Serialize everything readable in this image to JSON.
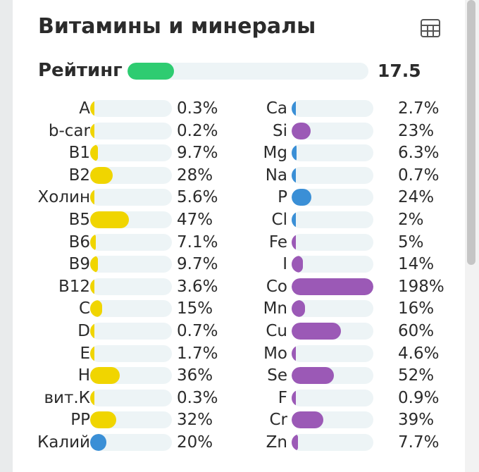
{
  "header": {
    "title": "Витамины и минералы",
    "icon": "table-icon"
  },
  "rating": {
    "label": "Рейтинг",
    "value": "17.5",
    "fraction": 0.175,
    "color": "#2ecc71"
  },
  "colors": {
    "vitamin": "#f0d500",
    "potassium": "#3a8fd6",
    "mineral_blue": "#3a8fd6",
    "mineral_purple": "#9b59b6",
    "track": "#edf4f6"
  },
  "vitamins": [
    {
      "name": "A",
      "percent": "0.3%",
      "value": 0.3,
      "color": "#f0d500"
    },
    {
      "name": "b-car",
      "percent": "0.2%",
      "value": 0.2,
      "color": "#f0d500"
    },
    {
      "name": "B1",
      "percent": "9.7%",
      "value": 9.7,
      "color": "#f0d500"
    },
    {
      "name": "B2",
      "percent": "28%",
      "value": 28,
      "color": "#f0d500"
    },
    {
      "name": "Холин",
      "percent": "5.6%",
      "value": 5.6,
      "color": "#f0d500"
    },
    {
      "name": "B5",
      "percent": "47%",
      "value": 47,
      "color": "#f0d500"
    },
    {
      "name": "B6",
      "percent": "7.1%",
      "value": 7.1,
      "color": "#f0d500"
    },
    {
      "name": "B9",
      "percent": "9.7%",
      "value": 9.7,
      "color": "#f0d500"
    },
    {
      "name": "B12",
      "percent": "3.6%",
      "value": 3.6,
      "color": "#f0d500"
    },
    {
      "name": "C",
      "percent": "15%",
      "value": 15,
      "color": "#f0d500"
    },
    {
      "name": "D",
      "percent": "0.7%",
      "value": 0.7,
      "color": "#f0d500"
    },
    {
      "name": "E",
      "percent": "1.7%",
      "value": 1.7,
      "color": "#f0d500"
    },
    {
      "name": "H",
      "percent": "36%",
      "value": 36,
      "color": "#f0d500"
    },
    {
      "name": "вит.К",
      "percent": "0.3%",
      "value": 0.3,
      "color": "#f0d500"
    },
    {
      "name": "PP",
      "percent": "32%",
      "value": 32,
      "color": "#f0d500"
    },
    {
      "name": "Калий",
      "percent": "20%",
      "value": 20,
      "color": "#3a8fd6"
    }
  ],
  "minerals": [
    {
      "name": "Ca",
      "percent": "2.7%",
      "value": 2.7,
      "color": "#3a8fd6"
    },
    {
      "name": "Si",
      "percent": "23%",
      "value": 23,
      "color": "#9b59b6"
    },
    {
      "name": "Mg",
      "percent": "6.3%",
      "value": 6.3,
      "color": "#3a8fd6"
    },
    {
      "name": "Na",
      "percent": "0.7%",
      "value": 0.7,
      "color": "#3a8fd6"
    },
    {
      "name": "P",
      "percent": "24%",
      "value": 24,
      "color": "#3a8fd6"
    },
    {
      "name": "Cl",
      "percent": "2%",
      "value": 2,
      "color": "#3a8fd6"
    },
    {
      "name": "Fe",
      "percent": "5%",
      "value": 5,
      "color": "#9b59b6"
    },
    {
      "name": "I",
      "percent": "14%",
      "value": 14,
      "color": "#9b59b6"
    },
    {
      "name": "Co",
      "percent": "198%",
      "value": 198,
      "color": "#9b59b6"
    },
    {
      "name": "Mn",
      "percent": "16%",
      "value": 16,
      "color": "#9b59b6"
    },
    {
      "name": "Cu",
      "percent": "60%",
      "value": 60,
      "color": "#9b59b6"
    },
    {
      "name": "Mo",
      "percent": "4.6%",
      "value": 4.6,
      "color": "#9b59b6"
    },
    {
      "name": "Se",
      "percent": "52%",
      "value": 52,
      "color": "#9b59b6"
    },
    {
      "name": "F",
      "percent": "0.9%",
      "value": 0.9,
      "color": "#9b59b6"
    },
    {
      "name": "Cr",
      "percent": "39%",
      "value": 39,
      "color": "#9b59b6"
    },
    {
      "name": "Zn",
      "percent": "7.7%",
      "value": 7.7,
      "color": "#9b59b6"
    }
  ]
}
